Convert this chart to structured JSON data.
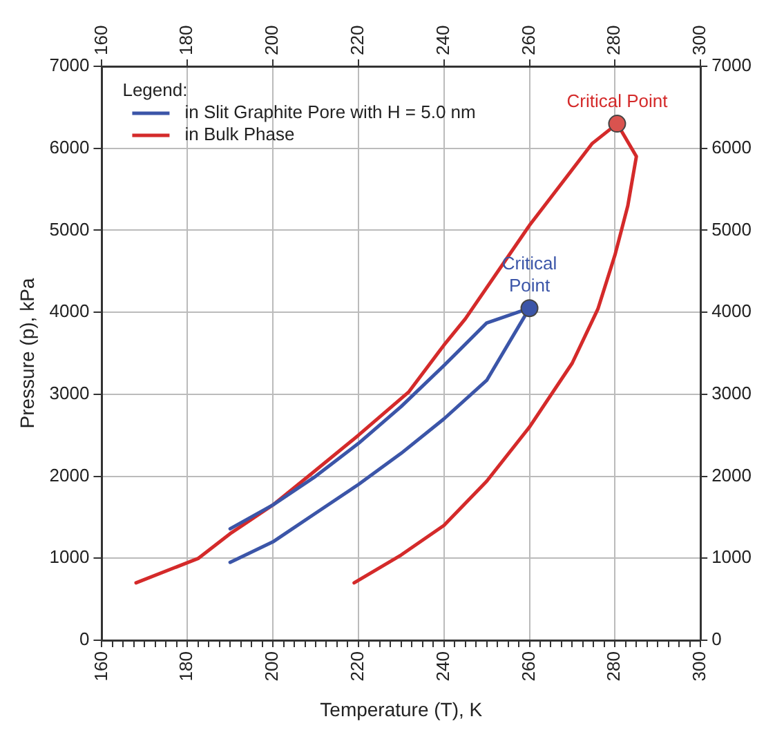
{
  "chart_data": {
    "type": "line",
    "xlabel": "Temperature (T), K",
    "ylabel": "Pressure (p), kPa",
    "legend_title": "Legend:",
    "legend": "top left",
    "grid": true,
    "marker": "none",
    "line_style": "solid",
    "xlim": [
      160,
      300
    ],
    "x2lim": [
      160,
      300
    ],
    "xticks": [
      160,
      {
        "value": 162.5,
        "label": null
      },
      {
        "value": 165,
        "label": null
      },
      {
        "value": 167.5,
        "label": null
      },
      {
        "value": 170,
        "label": null
      },
      {
        "value": 172.5,
        "label": null
      },
      {
        "value": 175,
        "label": null
      },
      {
        "value": 177.5,
        "label": null
      },
      180,
      {
        "value": 182.5,
        "label": null
      },
      {
        "value": 185,
        "label": null
      },
      {
        "value": 187.5,
        "label": null
      },
      {
        "value": 190,
        "label": null
      },
      {
        "value": 192.5,
        "label": null
      },
      {
        "value": 195,
        "label": null
      },
      {
        "value": 197.5,
        "label": null
      },
      200,
      {
        "value": 202.5,
        "label": null
      },
      {
        "value": 205,
        "label": null
      },
      {
        "value": 207.5,
        "label": null
      },
      {
        "value": 210,
        "label": null
      },
      {
        "value": 212.5,
        "label": null
      },
      {
        "value": 215,
        "label": null
      },
      {
        "value": 217.5,
        "label": null
      },
      220,
      {
        "value": 222.5,
        "label": null
      },
      {
        "value": 225,
        "label": null
      },
      {
        "value": 227.5,
        "label": null
      },
      {
        "value": 230,
        "label": null
      },
      {
        "value": 232.5,
        "label": null
      },
      {
        "value": 235,
        "label": null
      },
      {
        "value": 237.5,
        "label": null
      },
      240,
      {
        "value": 242.5,
        "label": null
      },
      {
        "value": 245,
        "label": null
      },
      {
        "value": 247.5,
        "label": null
      },
      {
        "value": 250,
        "label": null
      },
      {
        "value": 252.5,
        "label": null
      },
      {
        "value": 255,
        "label": null
      },
      {
        "value": 257.5,
        "label": null
      },
      260,
      {
        "value": 262.5,
        "label": null
      },
      {
        "value": 265,
        "label": null
      },
      {
        "value": 267.5,
        "label": null
      },
      {
        "value": 270,
        "label": null
      },
      {
        "value": 272.5,
        "label": null
      },
      {
        "value": 275,
        "label": null
      },
      {
        "value": 277.5,
        "label": null
      },
      280,
      {
        "value": 282.5,
        "label": null
      },
      {
        "value": 285,
        "label": null
      },
      {
        "value": 287.5,
        "label": null
      },
      {
        "value": 290,
        "label": null
      },
      {
        "value": 292.5,
        "label": null
      },
      {
        "value": 295,
        "label": null
      },
      {
        "value": 297.5,
        "label": null
      },
      300
    ],
    "x2ticks": [
      160,
      180,
      200,
      220,
      240,
      260,
      280,
      300
    ],
    "ylim": [
      0,
      7000
    ],
    "yticks": [
      0,
      1000,
      2000,
      3000,
      4000,
      5000,
      6000,
      7000
    ],
    "y2lim": [
      0,
      7000
    ],
    "y2ticks": [
      0,
      1000,
      2000,
      3000,
      4000,
      5000,
      6000,
      7000
    ],
    "series": [
      {
        "name": "in Slit Graphite Pore with H = 5.0 nm",
        "color": "#3b55a8",
        "x": [
          190,
          200,
          210,
          220,
          230,
          240,
          250,
          260,
          250,
          240,
          230,
          220,
          210,
          200,
          190
        ],
        "values": [
          950,
          1200,
          1550,
          1900,
          2280,
          2700,
          3170,
          4050,
          3870,
          3350,
          2850,
          2400,
          2000,
          1650,
          1360
        ]
      },
      {
        "name": "in Bulk Phase",
        "color": "#d42a2a",
        "x": [
          168,
          182.6,
          190,
          200,
          209,
          220,
          231.8,
          240,
          245,
          260,
          274.7,
          280.5,
          285,
          283,
          280,
          276,
          270,
          260,
          250,
          240,
          230,
          219
        ],
        "values": [
          700,
          1000,
          1300,
          1650,
          2030,
          2500,
          3030,
          3600,
          3920,
          5060,
          6060,
          6300,
          5900,
          5300,
          4700,
          4040,
          3380,
          2600,
          1940,
          1400,
          1040,
          700
        ]
      },
      {
        "type": "scatter",
        "marker": "circle",
        "color": "#3b55a8",
        "x": [
          260
        ],
        "values": [
          4050
        ]
      },
      {
        "type": "scatter",
        "marker": "circle",
        "color": "#d9534f",
        "x": [
          280.5
        ],
        "values": [
          6300
        ]
      }
    ],
    "annotations": [
      {
        "text": "Critical Point",
        "x": 280.5,
        "y": 6300
      },
      {
        "text": "Critical Point",
        "x": 260,
        "y": 4050
      }
    ]
  }
}
